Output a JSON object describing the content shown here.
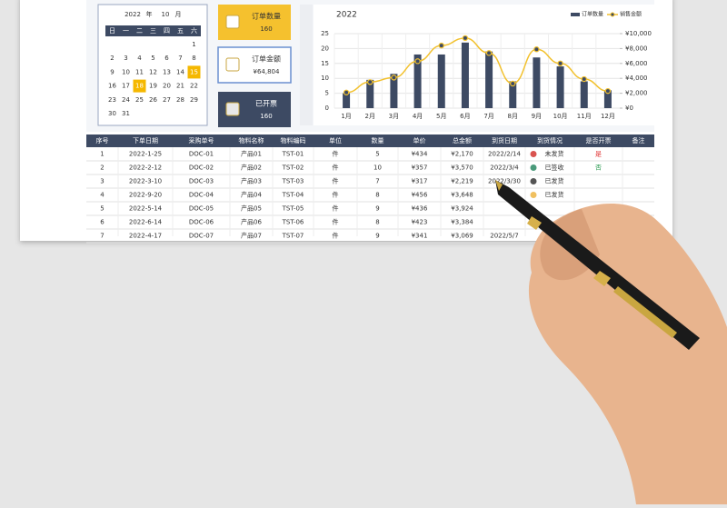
{
  "calendar": {
    "year": "2022",
    "year_unit": "年",
    "month": "10",
    "month_unit": "月",
    "weekdays": [
      "日",
      "一",
      "二",
      "三",
      "四",
      "五",
      "六"
    ],
    "weeks": [
      [
        null,
        null,
        null,
        null,
        null,
        null,
        1
      ],
      [
        2,
        3,
        4,
        5,
        6,
        7,
        8
      ],
      [
        9,
        10,
        11,
        12,
        13,
        14,
        15
      ],
      [
        16,
        17,
        18,
        19,
        20,
        21,
        22
      ],
      [
        23,
        24,
        25,
        26,
        27,
        28,
        29
      ],
      [
        30,
        31,
        null,
        null,
        null,
        null,
        null
      ]
    ],
    "highlight_days": [
      15,
      18
    ]
  },
  "cards": [
    {
      "label": "订单数量",
      "value": "160",
      "color": "#f5c12e"
    },
    {
      "label": "订单金额",
      "value": "¥64,804",
      "color": "#ffffff"
    },
    {
      "label": "已开票",
      "value": "160",
      "color": "#3d4a63"
    }
  ],
  "chart": {
    "title": "2022",
    "categories": [
      "1月",
      "2月",
      "3月",
      "4月",
      "5月",
      "6月",
      "7月",
      "8月",
      "9月",
      "10月",
      "11月",
      "12月"
    ],
    "series": [
      {
        "name": "订单数量",
        "color": "#3d4a63",
        "values": [
          5,
          9.5,
          11.5,
          18,
          18,
          22,
          19,
          9,
          17,
          14,
          9,
          6
        ]
      },
      {
        "name": "销售金额",
        "color": "#f2c12e",
        "axis": "y2",
        "values": [
          2100,
          3500,
          4100,
          6300,
          8400,
          9400,
          7400,
          3300,
          7900,
          6000,
          3900,
          2300
        ]
      }
    ],
    "ylim": [
      0,
      25
    ],
    "yticks": [
      0,
      5,
      10,
      15,
      20,
      25
    ],
    "y2lim": [
      0,
      10000
    ],
    "y2ticks": [
      {
        "value": 0,
        "label": "¥0"
      },
      {
        "value": 2000,
        "label": "¥2,000"
      },
      {
        "value": 4000,
        "label": "¥4,000"
      },
      {
        "value": 6000,
        "label": "¥6,000"
      },
      {
        "value": 8000,
        "label": "¥8,000"
      },
      {
        "value": 10000,
        "label": "¥10,000"
      }
    ],
    "grid": true
  },
  "table": {
    "header": [
      "序号",
      "下单日期",
      "采购单号",
      "物料名称",
      "物料编码",
      "单位",
      "数量",
      "单价",
      "总金额",
      "到货日期",
      "到货情况",
      "是否开票",
      "备注"
    ],
    "rows": [
      [
        "1",
        "2022-1-25",
        "DOC-01",
        "产品01",
        "TST-01",
        "件",
        "5",
        "¥434",
        "¥2,170",
        "2022/2/14",
        "未发货",
        "是",
        null
      ],
      [
        "2",
        "2022-2-12",
        "DOC-02",
        "产品02",
        "TST-02",
        "件",
        "10",
        "¥357",
        "¥3,570",
        "2022/3/4",
        "已签收",
        "否",
        null
      ],
      [
        "3",
        "2022-3-10",
        "DOC-03",
        "产品03",
        "TST-03",
        "件",
        "7",
        "¥317",
        "¥2,219",
        "2022/3/30",
        "已发货",
        null,
        null
      ],
      [
        "4",
        "2022-9-20",
        "DOC-04",
        "产品04",
        "TST-04",
        "件",
        "8",
        "¥456",
        "¥3,648",
        null,
        "已发货",
        null,
        null
      ],
      [
        "5",
        "2022-5-14",
        "DOC-05",
        "产品05",
        "TST-05",
        "件",
        "9",
        "¥436",
        "¥3,924",
        null,
        null,
        null,
        null
      ],
      [
        "6",
        "2022-6-14",
        "DOC-06",
        "产品06",
        "TST-06",
        "件",
        "8",
        "¥423",
        "¥3,384",
        null,
        null,
        null,
        null
      ],
      [
        "7",
        "2022-4-17",
        "DOC-07",
        "产品07",
        "TST-07",
        "件",
        "9",
        "¥341",
        "¥3,069",
        "2022/5/7",
        null,
        null,
        null
      ]
    ],
    "status_colors": [
      "#d9534f",
      "#4a9a7a",
      "#555555",
      "#f0c060",
      null,
      null,
      null
    ],
    "invoice_colors": [
      "#e03030",
      "#2a9a50",
      null,
      null,
      null,
      null,
      null
    ]
  }
}
